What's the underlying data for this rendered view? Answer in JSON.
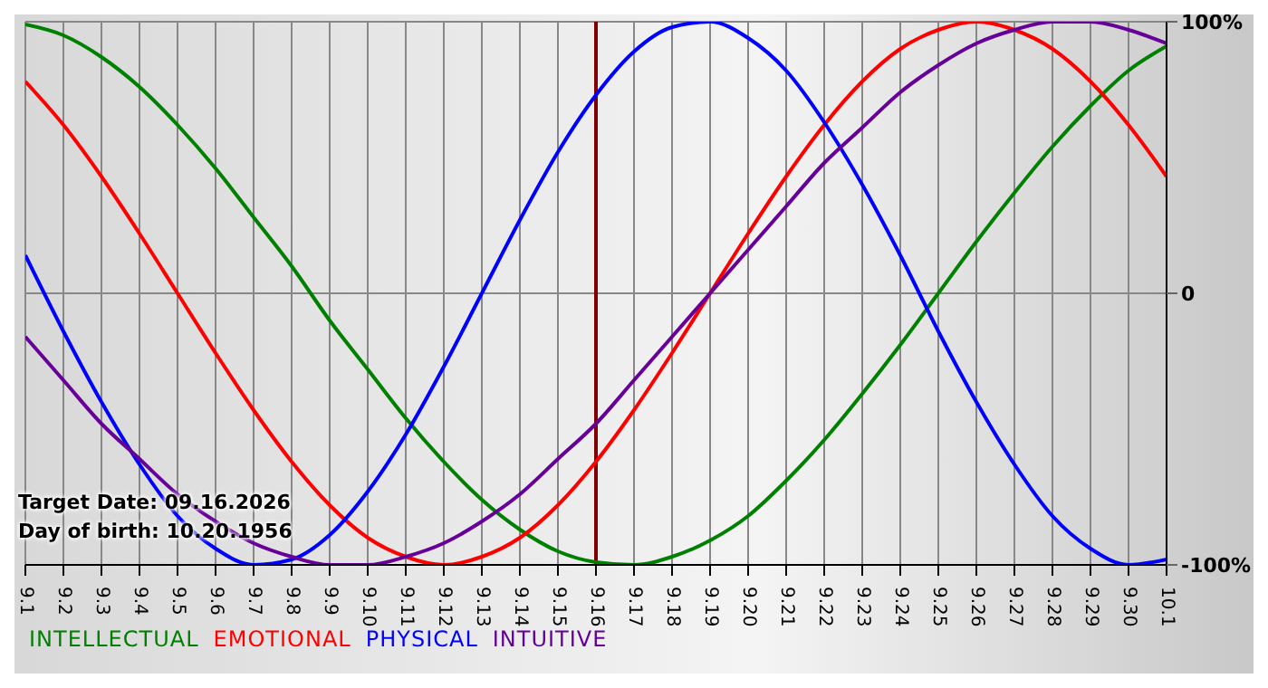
{
  "chart_data": {
    "type": "line",
    "categories": [
      "9.1",
      "9.2",
      "9.3",
      "9.4",
      "9.5",
      "9.6",
      "9.7",
      "9.8",
      "9.9",
      "9.10",
      "9.11",
      "9.12",
      "9.13",
      "9.14",
      "9.15",
      "9.16",
      "9.17",
      "9.18",
      "9.19",
      "9.20",
      "9.21",
      "9.22",
      "9.23",
      "9.24",
      "9.25",
      "9.26",
      "9.27",
      "9.28",
      "9.29",
      "9.30",
      "10.1"
    ],
    "series": [
      {
        "name": "INTELLECTUAL",
        "color": "#008000",
        "values": [
          99,
          95,
          87,
          76,
          62,
          46,
          28,
          10,
          -10,
          -28,
          -46,
          -62,
          -76,
          -87,
          -95,
          -99,
          -100,
          -97,
          -91,
          -82,
          -69,
          -54,
          -37,
          -19,
          0,
          19,
          37,
          54,
          69,
          82,
          91
        ]
      },
      {
        "name": "EMOTIONAL",
        "color": "#ff0000",
        "values": [
          78,
          62,
          43,
          22,
          0,
          -22,
          -43,
          -62,
          -78,
          -90,
          -97,
          -100,
          -97,
          -90,
          -78,
          -62,
          -43,
          -22,
          0,
          22,
          43,
          62,
          78,
          90,
          97,
          100,
          97,
          90,
          78,
          62,
          43
        ]
      },
      {
        "name": "PHYSICAL",
        "color": "#0000ff",
        "values": [
          14,
          -14,
          -40,
          -63,
          -82,
          -94,
          -100,
          -98,
          -89,
          -73,
          -52,
          -27,
          0,
          27,
          52,
          73,
          89,
          98,
          100,
          94,
          82,
          63,
          40,
          14,
          -14,
          -40,
          -63,
          -82,
          -94,
          -100,
          -98
        ]
      },
      {
        "name": "INTUITIVE",
        "color": "#660099",
        "values": [
          -16,
          -32,
          -48,
          -61,
          -74,
          -84,
          -92,
          -97,
          -100,
          -100,
          -97,
          -92,
          -84,
          -74,
          -61,
          -48,
          -32,
          -16,
          0,
          16,
          32,
          48,
          61,
          74,
          84,
          92,
          97,
          100,
          100,
          97,
          92
        ]
      }
    ],
    "ylim": [
      -100,
      100
    ],
    "yticks": [
      {
        "value": -100,
        "label": "-100%"
      },
      0,
      {
        "value": 100,
        "label": "100%"
      }
    ],
    "ref_lines": [
      {
        "axis": "x",
        "value": "9.16",
        "color": "#800000"
      }
    ],
    "annotations": [
      "Target Date: 09.16.2026",
      "Day of birth: 10.20.1956"
    ],
    "grid": true,
    "legend": "bottom left",
    "marker": "none",
    "line_style": "solid"
  }
}
